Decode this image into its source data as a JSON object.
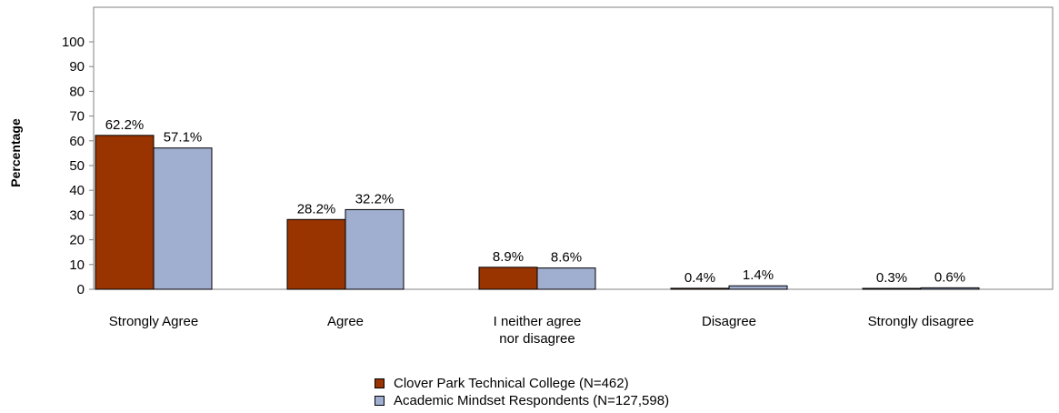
{
  "chart_data": {
    "type": "bar",
    "ylabel": "Percentage",
    "ylim": [
      0,
      100
    ],
    "yticks": [
      0,
      10,
      20,
      30,
      40,
      50,
      60,
      70,
      80,
      90,
      100
    ],
    "grid": false,
    "legend_position": "bottom-center",
    "categories": [
      [
        "Strongly Agree"
      ],
      [
        "Agree"
      ],
      [
        "I neither agree",
        "nor disagree"
      ],
      [
        "Disagree"
      ],
      [
        "Strongly disagree"
      ]
    ],
    "series": [
      {
        "name": "Clover Park Technical College (N=462)",
        "color": "#993300",
        "values": [
          62.2,
          28.2,
          8.9,
          0.4,
          0.3
        ],
        "labels": [
          "62.2%",
          "28.2%",
          "8.9%",
          "0.4%",
          "0.3%"
        ]
      },
      {
        "name": "Academic Mindset Respondents (N=127,598)",
        "color": "#A0AED0",
        "values": [
          57.1,
          32.2,
          8.6,
          1.4,
          0.6
        ],
        "labels": [
          "57.1%",
          "32.2%",
          "8.6%",
          "1.4%",
          "0.6%"
        ]
      }
    ]
  }
}
